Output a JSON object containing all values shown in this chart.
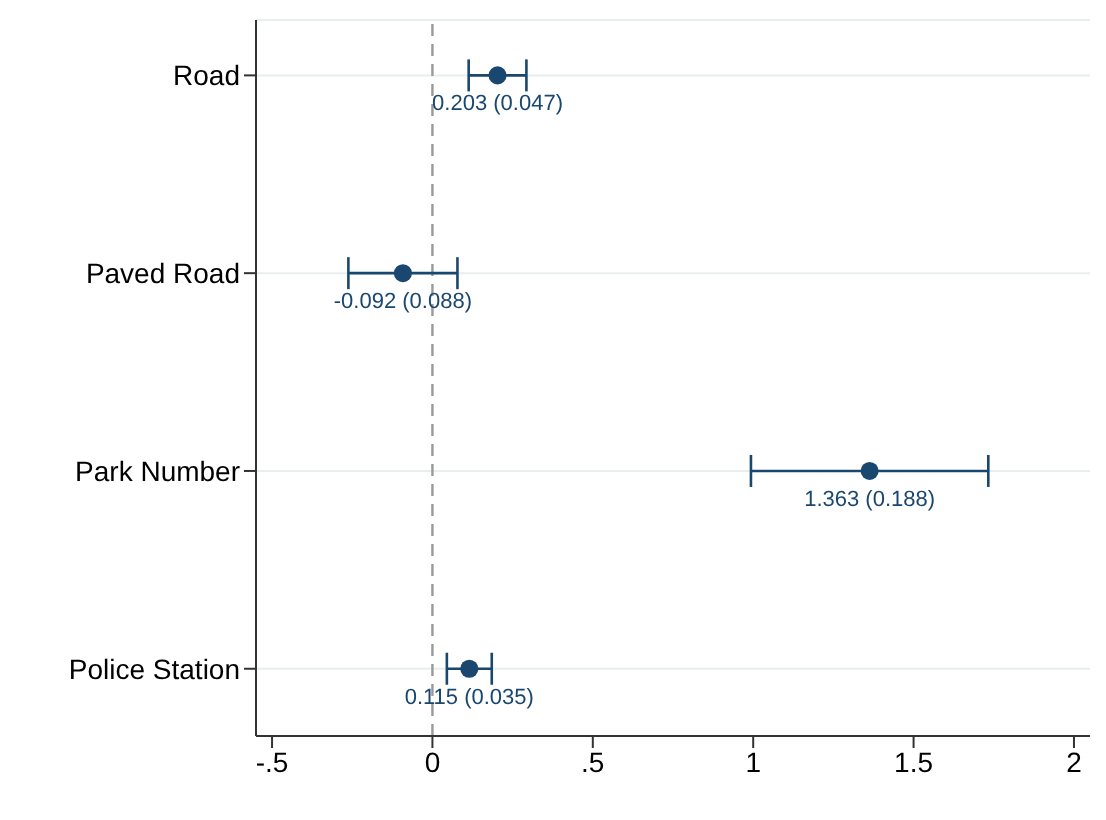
{
  "chart_data": {
    "type": "scatter",
    "orientation": "horizontal",
    "categories": [
      "Road",
      "Paved Road",
      "Park Number",
      "Police Station"
    ],
    "series": [
      {
        "color": "#1a476f",
        "values": [
          0.203,
          -0.092,
          1.363,
          0.115
        ],
        "errors": [
          0.09,
          0.17,
          0.37,
          0.07
        ],
        "value_labels": [
          "0.203 (0.047)",
          "-0.092 (0.088)",
          "1.363 (0.188)",
          "0.115 (0.035)"
        ]
      }
    ],
    "xlim": [
      -0.55,
      2.05
    ],
    "xticks": [
      {
        "value": -0.5,
        "label": "-.5"
      },
      0,
      {
        "value": 0.5,
        "label": ".5"
      },
      1,
      1.5,
      2
    ],
    "ref_lines": [
      {
        "axis": "x",
        "value": 0,
        "color": "#999999",
        "line_style": "dashed"
      }
    ],
    "grid": "y",
    "marker": "circle"
  }
}
